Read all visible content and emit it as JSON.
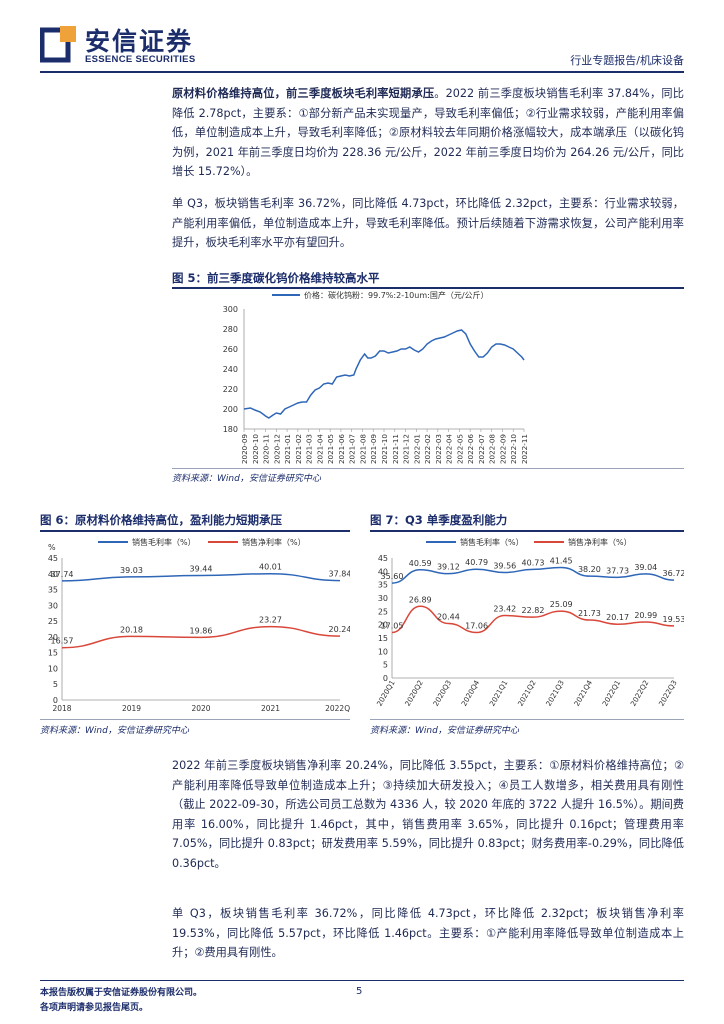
{
  "header": {
    "logo_cn": "安信证券",
    "logo_en": "ESSENCE SECURITIES",
    "report_type": "行业专题报告/机床设备",
    "brand_color": "#1c2d6b"
  },
  "paragraphs": {
    "p1_bold": "原材料价格维持高位，前三季度板块毛利率短期承压",
    "p1_text": "。2022 前三季度板块销售毛利率 37.84%，同比降低 2.78pct，主要系：①部分新产品未实现量产，导致毛利率偏低；②行业需求较弱，产能利用率偏低，单位制造成本上升，导致毛利率降低；②原材料较去年同期价格涨幅较大，成本端承压（以碳化钨为例，2021 年前三季度日均价为 228.36 元/公斤，2022 年前三季度日均价为 264.26 元/公斤，同比增长 15.72%）。",
    "p2_text": "单 Q3，板块销售毛利率 36.72%，同比降低 4.73pct，环比降低 2.32pct，主要系：行业需求较弱，产能利用率偏低，单位制造成本上升，导致毛利率降低。预计后续随着下游需求恢复，公司产能利用率提升，板块毛利率水平亦有望回升。",
    "p3_text": "2022 年前三季度板块销售净利率 20.24%，同比降低 3.55pct，主要系：①原材料价格维持高位；②产能利用率降低导致单位制造成本上升；③持续加大研发投入；④员工人数增多，相关费用具有刚性（截止 2022-09-30，所选公司员工总数为 4336 人，较 2020 年底的 3722 人提升 16.5%）。期间费用率 16.00%，同比提升 1.46pct，其中，销售费用率 3.65%，同比提升 0.16pct；管理费用率 7.05%，同比提升 0.83pct；研发费用率 5.59%，同比提升 0.83pct；财务费用率-0.29%，同比降低 0.36pct。",
    "p4_text": "单 Q3，板块销售毛利率 36.72%，同比降低 4.73pct，环比降低 2.32pct；板块销售净利率 19.53%，同比降低 5.57pct，环比降低 1.46pct。主要系：①产能利用率降低导致单位制造成本上升；②费用具有刚性。"
  },
  "figures": {
    "fig5_title": "图 5：前三季度碳化钨价格维持较高水平",
    "fig5_source": "资料来源：Wind，安信证券研究中心",
    "fig6_title": "图 6：原材料价格维持高位，盈利能力短期承压",
    "fig6_source": "资料来源：Wind，安信证券研究中心",
    "fig7_title": "图 7：Q3 单季度盈利能力",
    "fig7_source": "资料来源：Wind，安信证券研究中心"
  },
  "footer": {
    "line1": "本报告版权属于安信证券股份有限公司。",
    "line2": "各项声明请参见报告尾页。",
    "page": "5"
  },
  "chart_data": [
    {
      "id": "fig5",
      "type": "line",
      "legend": [
        "价格：碳化钨粉：99.7%:2-10um:国产（元/公斤）"
      ],
      "legend_position": "top-center",
      "color": "#2e66b8",
      "ylim": [
        180,
        300
      ],
      "yticks": [
        180,
        200,
        220,
        240,
        260,
        280,
        300
      ],
      "x_ticks": [
        "2020-09",
        "2020-10",
        "2020-11",
        "2020-12",
        "2021-01",
        "2021-02",
        "2021-03",
        "2021-04",
        "2021-05",
        "2021-06",
        "2021-07",
        "2021-08",
        "2021-09",
        "2021-10",
        "2021-11",
        "2021-12",
        "2022-01",
        "2022-02",
        "2022-03",
        "2022-04",
        "2022-05",
        "2022-06",
        "2022-07",
        "2022-08",
        "2022-09",
        "2022-10",
        "2022-11"
      ],
      "series": [
        {
          "values": [
            [
              0,
              200
            ],
            [
              0.6,
              201
            ],
            [
              1,
              199
            ],
            [
              1.5,
              197
            ],
            [
              2,
              193
            ],
            [
              2.3,
              191
            ],
            [
              2.7,
              194
            ],
            [
              3,
              196
            ],
            [
              3.4,
              195
            ],
            [
              3.8,
              200
            ],
            [
              4.2,
              202
            ],
            [
              4.6,
              204
            ],
            [
              5,
              206
            ],
            [
              5.4,
              207
            ],
            [
              5.8,
              207
            ],
            [
              6.2,
              214
            ],
            [
              6.6,
              219
            ],
            [
              7,
              221
            ],
            [
              7.4,
              225
            ],
            [
              7.8,
              226
            ],
            [
              8.2,
              225
            ],
            [
              8.6,
              232
            ],
            [
              9,
              233
            ],
            [
              9.4,
              234
            ],
            [
              9.8,
              233
            ],
            [
              10.2,
              234
            ],
            [
              10.4,
              240
            ],
            [
              10.8,
              249
            ],
            [
              11.2,
              255
            ],
            [
              11.5,
              251
            ],
            [
              11.8,
              251
            ],
            [
              12.2,
              253
            ],
            [
              12.6,
              258
            ],
            [
              13,
              258
            ],
            [
              13.4,
              256
            ],
            [
              13.8,
              257
            ],
            [
              14.2,
              258
            ],
            [
              14.6,
              260
            ],
            [
              15,
              260
            ],
            [
              15.4,
              262
            ],
            [
              15.8,
              259
            ],
            [
              16.2,
              257
            ],
            [
              16.6,
              260
            ],
            [
              17,
              265
            ],
            [
              17.4,
              268
            ],
            [
              17.8,
              270
            ],
            [
              18.2,
              271
            ],
            [
              18.6,
              272
            ],
            [
              19,
              274
            ],
            [
              19.4,
              276
            ],
            [
              19.8,
              278
            ],
            [
              20.2,
              279
            ],
            [
              20.6,
              275
            ],
            [
              21,
              265
            ],
            [
              21.4,
              258
            ],
            [
              21.8,
              252
            ],
            [
              22.2,
              252
            ],
            [
              22.6,
              256
            ],
            [
              23,
              262
            ],
            [
              23.4,
              265
            ],
            [
              23.8,
              265
            ],
            [
              24.2,
              264
            ],
            [
              24.6,
              262
            ],
            [
              25,
              260
            ],
            [
              25.4,
              256
            ],
            [
              25.8,
              252
            ],
            [
              26,
              249
            ]
          ]
        }
      ]
    },
    {
      "id": "fig6",
      "type": "line",
      "unit_label": "%",
      "legend": [
        "销售毛利率（%）",
        "销售净利率（%）"
      ],
      "legend_position": "top",
      "ylim": [
        0,
        45
      ],
      "yticks": [
        0,
        5,
        10,
        15,
        20,
        25,
        30,
        35,
        40,
        45
      ],
      "categories": [
        "2018",
        "2019",
        "2020",
        "2021",
        "2022Q3"
      ],
      "series": [
        {
          "name": "销售毛利率（%）",
          "color": "#2e66b8",
          "values": [
            37.74,
            39.03,
            39.44,
            40.01,
            37.84
          ]
        },
        {
          "name": "销售净利率（%）",
          "color": "#d9473b",
          "values": [
            16.57,
            20.18,
            19.86,
            23.27,
            20.24
          ]
        }
      ],
      "labels_gross": [
        "37.74",
        "39.03",
        "39.44",
        "40.01",
        "37.84"
      ],
      "labels_net": [
        "16.57",
        "20.18",
        "19.86",
        "23.27",
        "20.24"
      ]
    },
    {
      "id": "fig7",
      "type": "line",
      "legend": [
        "销售毛利率（%）",
        "销售净利率（%）"
      ],
      "legend_position": "top",
      "ylim": [
        0,
        45
      ],
      "yticks": [
        0,
        5,
        10,
        15,
        20,
        25,
        30,
        35,
        40,
        45
      ],
      "categories": [
        "2020Q1",
        "2020Q2",
        "2020Q3",
        "2020Q4",
        "2021Q1",
        "2021Q2",
        "2021Q3",
        "2021Q4",
        "2022Q1",
        "2022Q2",
        "2022Q3"
      ],
      "series": [
        {
          "name": "销售毛利率（%）",
          "color": "#2e66b8",
          "values": [
            35.6,
            40.59,
            39.12,
            40.79,
            39.56,
            40.73,
            41.45,
            38.2,
            37.73,
            39.04,
            36.72
          ]
        },
        {
          "name": "销售净利率（%）",
          "color": "#d9473b",
          "values": [
            17.05,
            26.89,
            20.44,
            17.06,
            23.42,
            22.82,
            25.09,
            21.73,
            20.17,
            20.99,
            19.53
          ]
        }
      ],
      "labels_gross": [
        "35.60",
        "40.59",
        "39.12",
        "40.79",
        "39.56",
        "40.73",
        "41.45",
        "38.20",
        "37.73",
        "39.04",
        "36.72"
      ],
      "labels_net": [
        "17.05",
        "26.89",
        "20.44",
        "17.06",
        "23.42",
        "22.82",
        "25.09",
        "21.73",
        "20.17",
        "20.99",
        "19.53"
      ]
    }
  ]
}
